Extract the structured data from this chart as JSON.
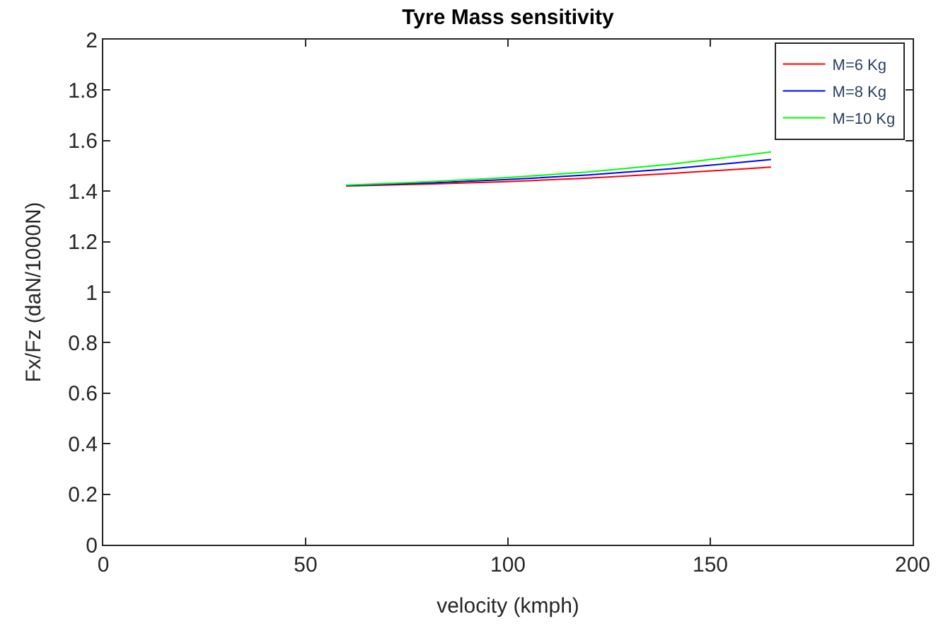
{
  "chart_data": {
    "type": "line",
    "title": "Tyre Mass sensitivity",
    "xlabel": "velocity (kmph)",
    "ylabel": "Fx/Fz (daN/1000N)",
    "x": [
      60,
      80,
      100,
      120,
      140,
      165
    ],
    "series": [
      {
        "name": "M=6 Kg",
        "color": "#ff0000",
        "values": [
          1.42,
          1.428,
          1.438,
          1.452,
          1.47,
          1.495
        ]
      },
      {
        "name": "M=8 Kg",
        "color": "#0000ff",
        "values": [
          1.422,
          1.432,
          1.446,
          1.464,
          1.488,
          1.525
        ]
      },
      {
        "name": "M=10 Kg",
        "color": "#00ff00",
        "values": [
          1.424,
          1.437,
          1.454,
          1.476,
          1.506,
          1.555
        ]
      }
    ],
    "xlim": [
      0,
      200
    ],
    "xticks": [
      0,
      50,
      100,
      150,
      200
    ],
    "ylim": [
      0,
      2
    ],
    "yticks": [
      0,
      0.2,
      0.4,
      0.6,
      0.8,
      1,
      1.2,
      1.4,
      1.6,
      1.8,
      2
    ],
    "legend": "top right",
    "marker": "none",
    "line_style": "solid"
  }
}
